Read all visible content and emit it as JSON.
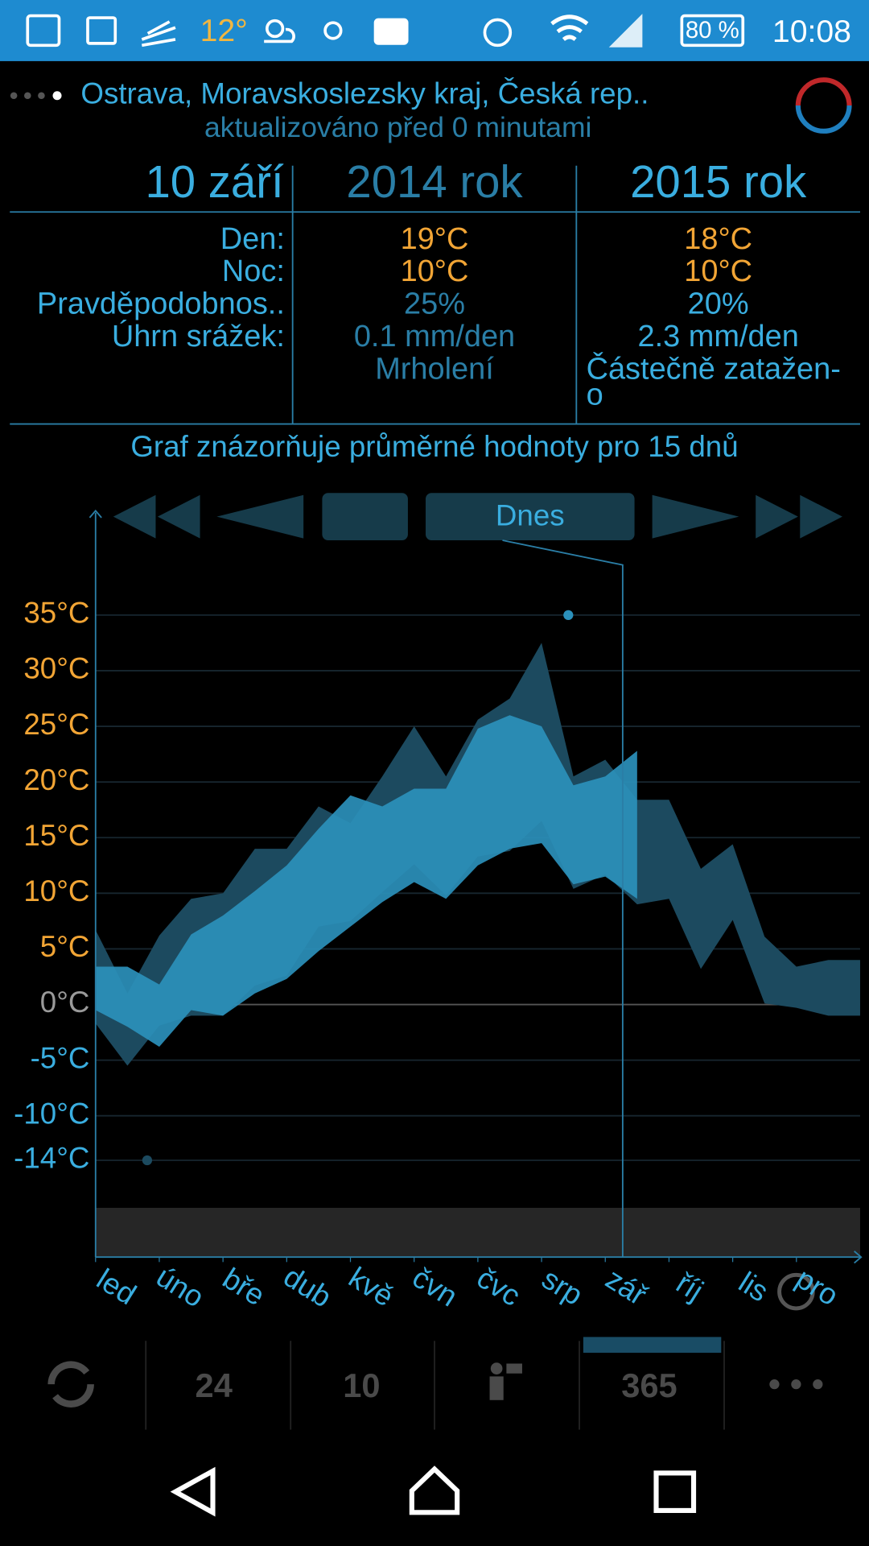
{
  "status_bar": {
    "temperature": "12°",
    "battery": "80 %",
    "time": "10:08"
  },
  "header": {
    "location": "Ostrava, Moravskoslezsky kraj, Česká rep..",
    "updated": "aktualizováno před 0 minutami"
  },
  "table": {
    "headers": [
      "10 září",
      "2014 rok",
      "2015 rok"
    ],
    "rows": [
      {
        "label": "Den:",
        "values": [
          "19°C",
          "18°C"
        ]
      },
      {
        "label": "Noc:",
        "values": [
          "10°C",
          "10°C"
        ]
      },
      {
        "label": "Pravděpodobnos..",
        "values": [
          "25%",
          "20%"
        ]
      },
      {
        "label": "Úhrn srážek:",
        "values": [
          "0.1 mm/den",
          "2.3 mm/den"
        ]
      }
    ],
    "conditions": [
      [
        "Mrholení"
      ],
      [
        "Částečně zatažen-",
        "o"
      ]
    ]
  },
  "caption": "Graf znázorňuje průměrné hodnoty pro 15 dnů",
  "navigation": {
    "today": "Dnes"
  },
  "tabs": [
    "24",
    "10",
    "365"
  ],
  "chart_data": {
    "type": "area",
    "x": [
      0,
      0.5,
      1,
      1.5,
      2,
      2.5,
      3,
      3.5,
      4,
      4.5,
      5,
      5.5,
      6,
      6.5,
      7,
      7.5,
      8,
      8.5,
      9,
      9.5,
      10,
      10.5,
      11,
      11.5,
      12
    ],
    "series": [
      {
        "color": "#1c4a5f",
        "high": [
          6.7,
          1.0,
          6.2,
          9.5,
          10,
          14,
          14,
          17.8,
          16.3,
          20.5,
          25,
          20.5,
          25.6,
          27.5,
          32.5,
          20.5,
          22,
          18.4,
          18.4,
          12.2,
          14.4,
          6.1,
          3.4,
          4,
          4
        ],
        "low": [
          -1.7,
          -5.5,
          -1.9,
          -1.0,
          -1.0,
          1.7,
          2.6,
          7.0,
          7.5,
          10.1,
          12.6,
          9.8,
          13.3,
          13.8,
          16.5,
          10.4,
          11.7,
          9.0,
          9.5,
          3.2,
          7.6,
          0.1,
          -0.3,
          -1.0,
          -1.0
        ]
      },
      {
        "color": "#2b90bb",
        "high": [
          3.4,
          3.4,
          1.8,
          6.3,
          8.0,
          10.2,
          12.5,
          15.8,
          18.8,
          17.8,
          19.4,
          19.4,
          24.8,
          26,
          25,
          19.7,
          20.5,
          22.8,
          null,
          null,
          null,
          null,
          null,
          null,
          null
        ],
        "low": [
          -0.5,
          -2,
          -3.8,
          -0.5,
          -1.0,
          1.0,
          2.3,
          4.8,
          7.0,
          9.2,
          11.0,
          9.5,
          12.5,
          14.0,
          14.5,
          10.8,
          11.5,
          9.5,
          null,
          null,
          null,
          null,
          null,
          null,
          null
        ]
      }
    ],
    "extremes": [
      {
        "x": 7.42,
        "value": 35
      },
      {
        "x": 0.81,
        "value": -14
      }
    ],
    "xlim": [
      0,
      12
    ],
    "xticks": [
      {
        "value": 0,
        "label": "led"
      },
      {
        "value": 1,
        "label": "úno"
      },
      {
        "value": 2,
        "label": "bře"
      },
      {
        "value": 3,
        "label": "dub"
      },
      {
        "value": 4,
        "label": "kvě"
      },
      {
        "value": 5,
        "label": "čvn"
      },
      {
        "value": 6,
        "label": "čvc"
      },
      {
        "value": 7,
        "label": "srp"
      },
      {
        "value": 8,
        "label": "zář"
      },
      {
        "value": 9,
        "label": "říj"
      },
      {
        "value": 10,
        "label": "lis"
      },
      {
        "value": 11,
        "label": "pro"
      }
    ],
    "ylim": [
      -22.7,
      44.2
    ],
    "yticks": [
      {
        "value": 35,
        "label": "35°C"
      },
      {
        "value": 30,
        "label": "30°C"
      },
      {
        "value": 25,
        "label": "25°C"
      },
      {
        "value": 20,
        "label": "20°C"
      },
      {
        "value": 15,
        "label": "15°C"
      },
      {
        "value": 10,
        "label": "10°C"
      },
      {
        "value": 5,
        "label": "5°C"
      },
      {
        "value": 0,
        "label": "0°C"
      },
      {
        "value": -5,
        "label": "-5°C"
      },
      {
        "value": -10,
        "label": "-10°C"
      },
      {
        "value": -14,
        "label": "-14°C"
      }
    ],
    "grid": true
  }
}
